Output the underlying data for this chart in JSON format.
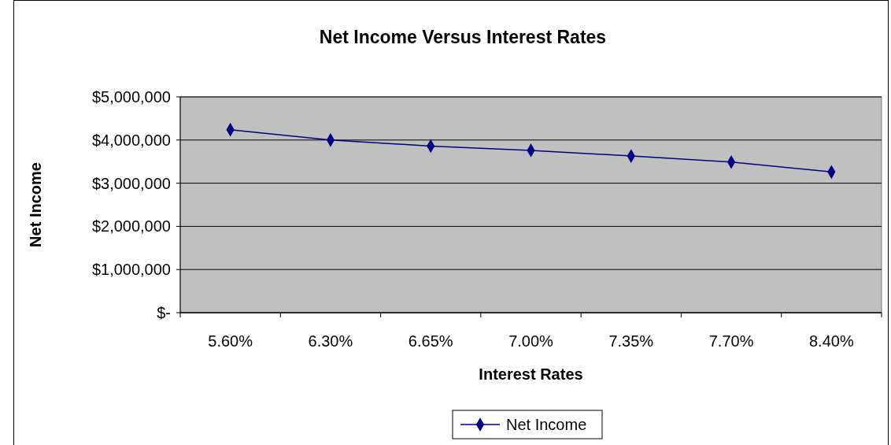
{
  "chart_data": {
    "type": "line",
    "title": "Net Income Versus Interest Rates",
    "xlabel": "Interest Rates",
    "ylabel": "Net Income",
    "categories": [
      "5.60%",
      "6.30%",
      "6.65%",
      "7.00%",
      "7.35%",
      "7.70%",
      "8.40%"
    ],
    "series": [
      {
        "name": "Net Income",
        "color": "#000080",
        "values": [
          4240000,
          4000000,
          3860000,
          3760000,
          3630000,
          3490000,
          3260000
        ]
      }
    ],
    "ylim": [
      0,
      5000000
    ],
    "yticks": [
      {
        "value": 0,
        "label": "$-"
      },
      {
        "value": 1000000,
        "label": "$1,000,000"
      },
      {
        "value": 2000000,
        "label": "$2,000,000"
      },
      {
        "value": 3000000,
        "label": "$3,000,000"
      },
      {
        "value": 4000000,
        "label": "$4,000,000"
      },
      {
        "value": 5000000,
        "label": "$5,000,000"
      }
    ],
    "grid": "y",
    "legend": "bottom",
    "marker": "diamond",
    "line_style": "solid"
  }
}
